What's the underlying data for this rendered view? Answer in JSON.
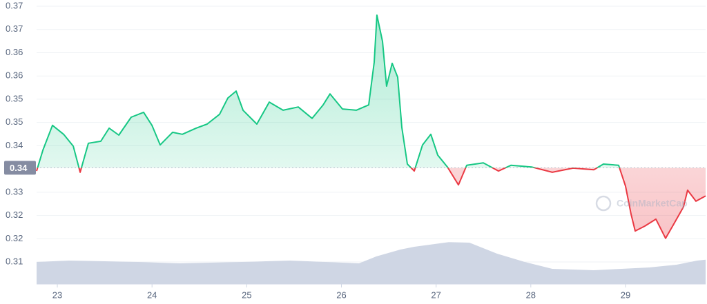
{
  "chart_data": {
    "type": "line",
    "x": [
      22.781,
      22.847,
      22.949,
      23.066,
      23.168,
      23.241,
      23.328,
      23.459,
      23.547,
      23.649,
      23.78,
      23.911,
      23.999,
      24.086,
      24.217,
      24.32,
      24.465,
      24.582,
      24.713,
      24.801,
      24.888,
      24.961,
      25.107,
      25.238,
      25.384,
      25.544,
      25.69,
      25.807,
      25.88,
      26.011,
      26.157,
      26.288,
      26.346,
      26.375,
      26.434,
      26.477,
      26.536,
      26.594,
      26.638,
      26.696,
      26.769,
      26.857,
      26.944,
      27.017,
      27.119,
      27.236,
      27.323,
      27.498,
      27.659,
      27.79,
      28.008,
      28.227,
      28.446,
      28.665,
      28.767,
      28.927,
      29.0,
      29.058,
      29.102,
      29.204,
      29.321,
      29.423,
      29.51,
      29.612,
      29.656,
      29.744,
      29.846
    ],
    "values": [
      0.3345,
      0.3396,
      0.3457,
      0.3435,
      0.3406,
      0.3342,
      0.3413,
      0.3418,
      0.345,
      0.3433,
      0.3477,
      0.3489,
      0.3457,
      0.3409,
      0.344,
      0.3435,
      0.345,
      0.346,
      0.3484,
      0.3524,
      0.3541,
      0.3494,
      0.346,
      0.3514,
      0.3494,
      0.3502,
      0.3474,
      0.3507,
      0.3534,
      0.3497,
      0.3494,
      0.3507,
      0.3612,
      0.3727,
      0.3663,
      0.3553,
      0.3609,
      0.3575,
      0.3452,
      0.3362,
      0.3345,
      0.3409,
      0.3435,
      0.3384,
      0.3355,
      0.3311,
      0.3359,
      0.3365,
      0.3345,
      0.3359,
      0.3355,
      0.3342,
      0.3352,
      0.3348,
      0.3362,
      0.3359,
      0.3308,
      0.324,
      0.3198,
      0.321,
      0.3227,
      0.318,
      0.3215,
      0.3257,
      0.3298,
      0.3271,
      0.3284
    ],
    "baseline": {
      "value": 0.3353,
      "label": "0.34"
    },
    "colors": {
      "up": "#16c784",
      "down": "#ea3943",
      "volume": "#cfd6e4"
    },
    "volume": {
      "x": [
        22.781,
        23.124,
        23.853,
        24.29,
        24.947,
        25.457,
        26.186,
        26.368,
        26.623,
        26.769,
        27.134,
        27.352,
        27.644,
        27.936,
        28.227,
        28.665,
        28.956,
        29.248,
        29.539,
        29.758,
        29.846
      ],
      "values": [
        40,
        42.5,
        40,
        37.5,
        40,
        42.5,
        37.5,
        50,
        62.5,
        67.5,
        76,
        75,
        55,
        40,
        27.5,
        25,
        27.5,
        30,
        35,
        42.5,
        44
      ],
      "vlim": [
        0,
        100
      ]
    },
    "xlim": [
      22.781,
      29.846
    ],
    "xticks": [
      23,
      24,
      25,
      26,
      27,
      28,
      29
    ],
    "ylim": [
      0.3068,
      0.3749
    ],
    "yticks": [
      {
        "value": 0.3122,
        "label": "0.31"
      },
      {
        "value": 0.3179,
        "label": "0.32"
      },
      {
        "value": 0.3236,
        "label": "0.32"
      },
      {
        "value": 0.3293,
        "label": "0.33"
      },
      {
        "value": 0.3407,
        "label": "0.34"
      },
      {
        "value": 0.3464,
        "label": "0.35"
      },
      {
        "value": 0.3521,
        "label": "0.35"
      },
      {
        "value": 0.3578,
        "label": "0.36"
      },
      {
        "value": 0.3635,
        "label": "0.36"
      },
      {
        "value": 0.3692,
        "label": "0.37"
      },
      {
        "value": 0.3749,
        "label": "0.37"
      }
    ],
    "grid": true,
    "watermark": "CoinMarketCap"
  }
}
